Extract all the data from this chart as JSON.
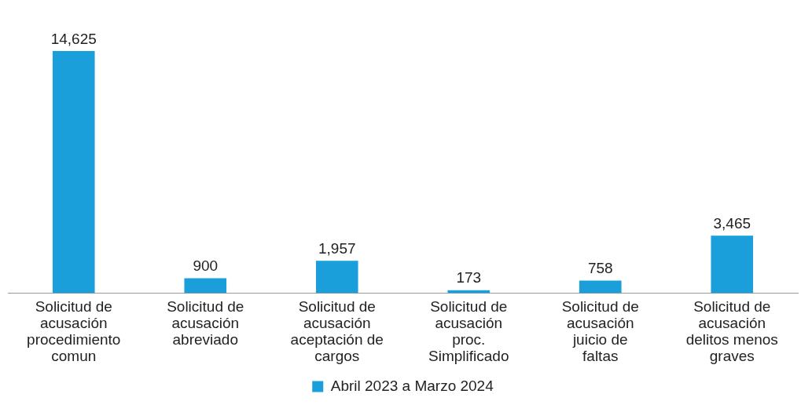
{
  "chart_data": {
    "type": "bar",
    "categories": [
      "Solicitud de acusación procedimiento comun",
      "Solicitud de acusación abreviado",
      "Solicitud de acusación aceptación de cargos",
      "Solicitud de acusación proc. Simplificado",
      "Solicitud de acusación juicio de faltas",
      "Solicitud de acusación delitos menos graves"
    ],
    "series": [
      {
        "name": "Abril 2023 a Marzo 2024",
        "color": "#1a9fdb",
        "values": [
          14625,
          900,
          1957,
          173,
          758,
          3465
        ],
        "value_labels": [
          "14,625",
          "900",
          "1,957",
          "173",
          "758",
          "3,465"
        ]
      }
    ],
    "legend": "bottom",
    "grid": false
  }
}
